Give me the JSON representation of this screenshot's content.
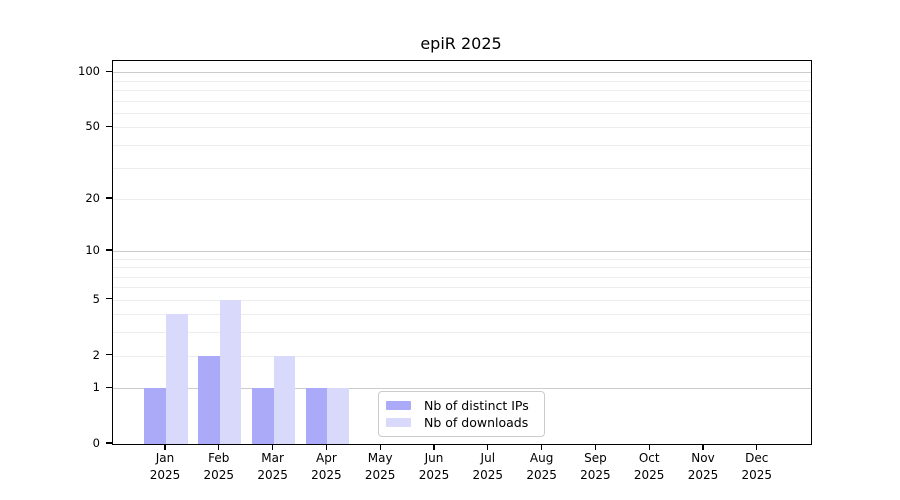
{
  "chart_data": {
    "type": "bar",
    "title": "epiR 2025",
    "categories": [
      "Jan 2025",
      "Feb 2025",
      "Mar 2025",
      "Apr 2025",
      "May 2025",
      "Jun 2025",
      "Jul 2025",
      "Aug 2025",
      "Sep 2025",
      "Oct 2025",
      "Nov 2025",
      "Dec 2025"
    ],
    "series": [
      {
        "name": "Nb of distinct IPs",
        "color": "#aaaaf9",
        "values": [
          1,
          2,
          1,
          1,
          0,
          0,
          0,
          0,
          0,
          0,
          0,
          0
        ]
      },
      {
        "name": "Nb of downloads",
        "color": "#d9d9fb",
        "values": [
          4,
          5,
          2,
          1,
          0,
          0,
          0,
          0,
          0,
          0,
          0,
          0
        ]
      }
    ],
    "xlabel": "",
    "ylabel": "",
    "y_scale": "log1p",
    "y_ticks": [
      0,
      1,
      2,
      5,
      10,
      20,
      50,
      100
    ],
    "ylim": [
      0,
      116
    ],
    "grid": {
      "major_values": [
        1,
        10,
        100
      ],
      "minor_values": [
        2,
        3,
        4,
        5,
        6,
        7,
        8,
        9,
        20,
        30,
        40,
        50,
        60,
        70,
        80,
        90
      ]
    },
    "legend_position": "inside-bottom-center-left",
    "colors": {
      "grid_major": "#cccccc",
      "grid_minor": "#ededed",
      "axis_spine": "#000000",
      "legend_border": "#cccccc",
      "text": "#000000"
    }
  }
}
